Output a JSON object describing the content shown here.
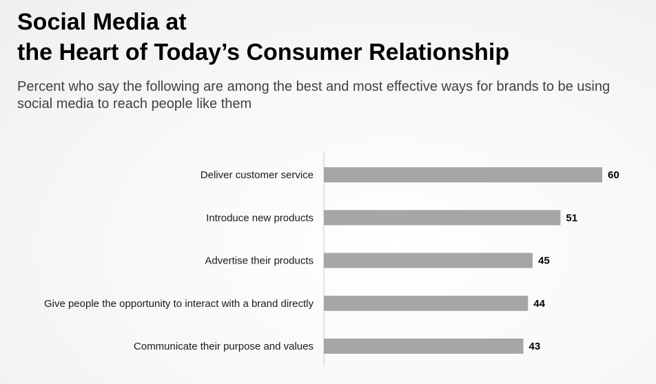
{
  "chart_data": {
    "type": "bar",
    "orientation": "horizontal",
    "title_lines": [
      "Social Media at",
      "the Heart of Today’s Consumer Relationship"
    ],
    "subtitle": "Percent who say the following are among the best and most effective ways for brands to be using social media to reach people like them",
    "categories": [
      "Deliver customer service",
      "Introduce new products",
      "Advertise their products",
      "Give people the opportunity to interact with a brand directly",
      "Communicate their purpose and values"
    ],
    "values": [
      60,
      51,
      45,
      44,
      43
    ],
    "xlim": [
      0,
      60
    ],
    "grid": false,
    "bar_color": "#a6a6a6",
    "axis_color": "#c8c8c8"
  }
}
